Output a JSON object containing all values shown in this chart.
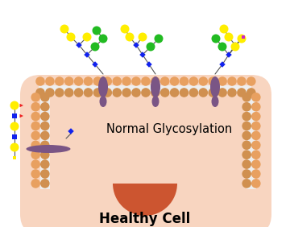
{
  "title": "Healthy Cell",
  "label": "Normal Glycosylation",
  "bg_color": "#FFFFFF",
  "cell_interior": "#F8D5C0",
  "membrane_outer_color": "#E8A060",
  "membrane_inner_color": "#D09050",
  "membrane_white_gap": "#EEEEEE",
  "nucleus_color": "#CC5530",
  "protein_color": "#7A5585",
  "glycan_colors": {
    "yellow_circle": "#FFEE00",
    "green_circle": "#22BB22",
    "blue_diamond": "#1122EE",
    "magenta_square": "#CC22CC",
    "yellow_square": "#FFEE00",
    "red_triangle": "#EE2222",
    "blue_square": "#1122EE"
  }
}
